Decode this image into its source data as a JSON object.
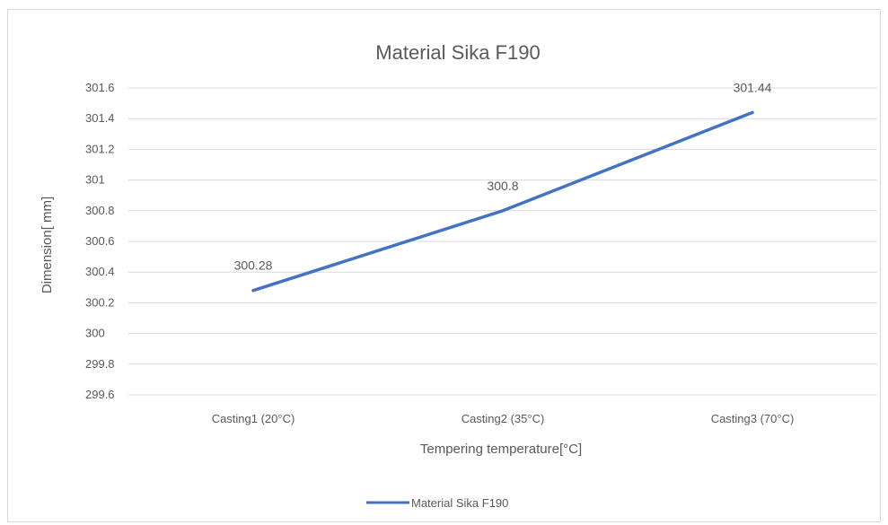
{
  "chart_data": {
    "type": "line",
    "title": "Material Sika F190",
    "xlabel": "Tempering temperature[°C]",
    "ylabel": "Dimension[ mm]",
    "categories": [
      "Casting1 (20°C)",
      "Casting2 (35°C)",
      "Casting3 (70°C)"
    ],
    "series": [
      {
        "name": "Material Sika F190",
        "values": [
          300.28,
          300.8,
          301.44
        ],
        "data_labels": [
          "300.28",
          "300.8",
          "301.44"
        ],
        "color": "#4472c4"
      }
    ],
    "y_ticks": [
      "299.6",
      "299.8",
      "300",
      "300.2",
      "300.4",
      "300.6",
      "300.8",
      "301",
      "301.2",
      "301.4",
      "301.6"
    ],
    "ylim": [
      299.6,
      301.6
    ],
    "grid": true,
    "legend": "bottom"
  }
}
